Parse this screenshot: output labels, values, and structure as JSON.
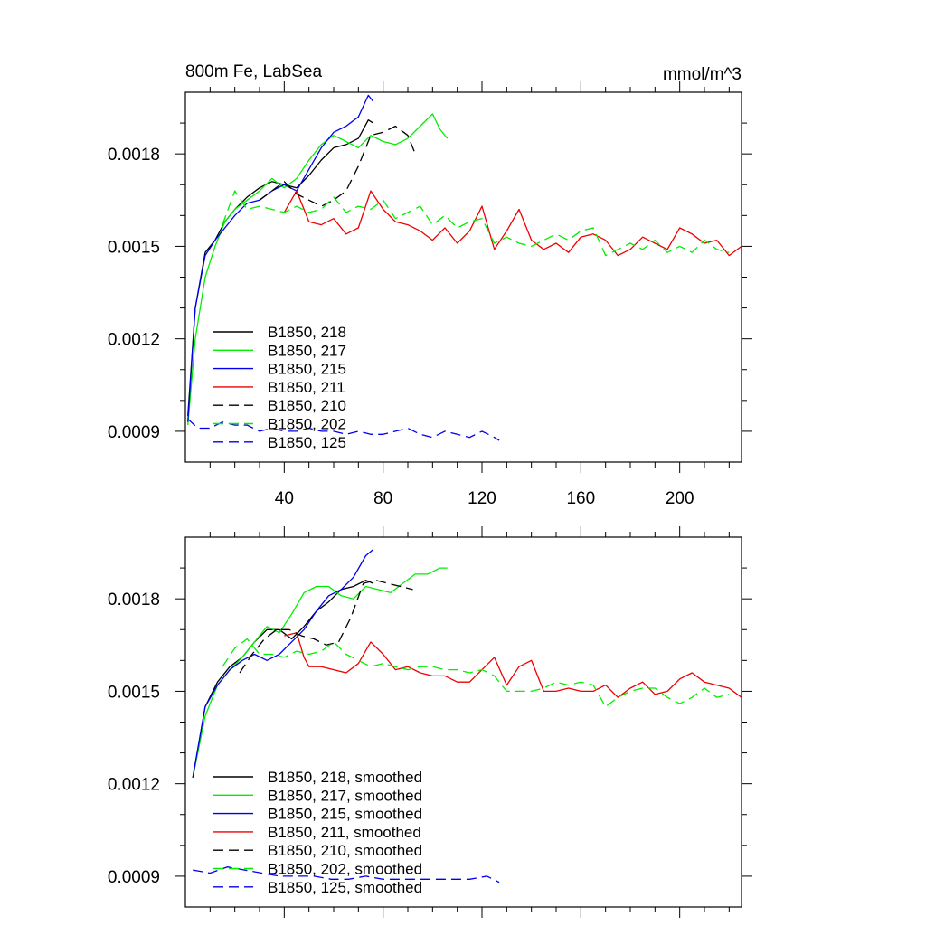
{
  "chart_data": [
    {
      "type": "line",
      "title_left": "800m Fe, LabSea",
      "title_right": "mmol/m^3",
      "xlim": [
        0,
        225
      ],
      "ylim": [
        0.0008,
        0.002
      ],
      "x_ticks": [
        40,
        80,
        120,
        160,
        200
      ],
      "y_ticks": [
        0.0009,
        0.0012,
        0.0015,
        0.0018
      ],
      "y_tick_labels": [
        "0.0009",
        "0.0012",
        "0.0015",
        "0.0018"
      ],
      "grid": false,
      "legend_position": "bottom-left",
      "series": [
        {
          "name": "B1850, 218",
          "color": "#000000",
          "dash": "solid",
          "x": [
            1,
            4,
            8,
            12,
            16,
            20,
            25,
            30,
            35,
            40,
            45,
            50,
            55,
            60,
            65,
            70,
            74,
            76
          ],
          "y": [
            0.00095,
            0.0013,
            0.00148,
            0.00152,
            0.00158,
            0.00162,
            0.00166,
            0.00169,
            0.00171,
            0.0017,
            0.00169,
            0.00173,
            0.00178,
            0.00182,
            0.00183,
            0.00185,
            0.00191,
            0.0019
          ]
        },
        {
          "name": "B1850, 217",
          "color": "#00ee00",
          "dash": "solid",
          "x": [
            1,
            4,
            8,
            12,
            16,
            20,
            25,
            30,
            35,
            40,
            45,
            50,
            55,
            60,
            65,
            70,
            75,
            80,
            85,
            90,
            95,
            100,
            103,
            106
          ],
          "y": [
            0.00092,
            0.0012,
            0.0014,
            0.0015,
            0.00158,
            0.00162,
            0.00165,
            0.00168,
            0.00172,
            0.00169,
            0.00172,
            0.00178,
            0.00183,
            0.00186,
            0.00184,
            0.00182,
            0.00186,
            0.00184,
            0.00183,
            0.00185,
            0.00189,
            0.00193,
            0.00188,
            0.00185
          ]
        },
        {
          "name": "B1850, 215",
          "color": "#0000ee",
          "dash": "solid",
          "x": [
            1,
            4,
            8,
            12,
            16,
            20,
            25,
            30,
            35,
            40,
            45,
            50,
            55,
            60,
            65,
            70,
            74,
            76
          ],
          "y": [
            0.00093,
            0.0013,
            0.00147,
            0.00152,
            0.00156,
            0.0016,
            0.00164,
            0.00165,
            0.00168,
            0.0017,
            0.00168,
            0.00175,
            0.00182,
            0.00187,
            0.00189,
            0.00192,
            0.00199,
            0.00197
          ]
        },
        {
          "name": "B1850, 211",
          "color": "#ee0000",
          "dash": "solid",
          "x": [
            40,
            45,
            50,
            55,
            60,
            65,
            70,
            75,
            80,
            85,
            90,
            95,
            100,
            105,
            110,
            115,
            120,
            125,
            130,
            135,
            140,
            145,
            150,
            155,
            160,
            165,
            170,
            175,
            180,
            185,
            190,
            195,
            200,
            205,
            210,
            215,
            220,
            225
          ],
          "y": [
            0.00161,
            0.00168,
            0.00158,
            0.00157,
            0.00159,
            0.00154,
            0.00156,
            0.00168,
            0.00162,
            0.00158,
            0.00157,
            0.00155,
            0.00152,
            0.00156,
            0.00151,
            0.00155,
            0.00163,
            0.00149,
            0.00155,
            0.00162,
            0.00152,
            0.00149,
            0.00151,
            0.00148,
            0.00153,
            0.00154,
            0.00152,
            0.00147,
            0.00149,
            0.00153,
            0.00151,
            0.00149,
            0.00156,
            0.00154,
            0.00151,
            0.00152,
            0.00147,
            0.0015
          ]
        },
        {
          "name": "B1850, 210",
          "color": "#000000",
          "dash": "dashed",
          "x": [
            30,
            35,
            40,
            45,
            50,
            55,
            60,
            65,
            70,
            75,
            80,
            85,
            90,
            93
          ],
          "y": [
            0.00165,
            0.00168,
            0.00171,
            0.00167,
            0.00165,
            0.00163,
            0.00165,
            0.00168,
            0.00176,
            0.00186,
            0.00187,
            0.00189,
            0.00186,
            0.0018
          ]
        },
        {
          "name": "B1850, 202",
          "color": "#00ee00",
          "dash": "dashed",
          "x": [
            15,
            20,
            25,
            30,
            35,
            40,
            45,
            50,
            55,
            60,
            65,
            70,
            75,
            80,
            85,
            90,
            95,
            100,
            105,
            110,
            115,
            120,
            125,
            130,
            135,
            140,
            145,
            150,
            155,
            160,
            165,
            170,
            175,
            180,
            185,
            190,
            195,
            200,
            205,
            210,
            215,
            220
          ],
          "y": [
            0.00157,
            0.00168,
            0.00162,
            0.00163,
            0.00162,
            0.00161,
            0.00163,
            0.00161,
            0.00162,
            0.00166,
            0.00161,
            0.00163,
            0.00162,
            0.00165,
            0.00159,
            0.00161,
            0.00163,
            0.00157,
            0.0016,
            0.00156,
            0.00158,
            0.00159,
            0.00151,
            0.00153,
            0.00151,
            0.0015,
            0.00152,
            0.00154,
            0.00152,
            0.00155,
            0.00156,
            0.00147,
            0.00149,
            0.00151,
            0.00149,
            0.00152,
            0.00148,
            0.0015,
            0.00148,
            0.00152,
            0.00149,
            0.00148
          ]
        },
        {
          "name": "B1850, 125",
          "color": "#0000ee",
          "dash": "dashed",
          "x": [
            1,
            5,
            10,
            15,
            20,
            25,
            30,
            35,
            40,
            45,
            50,
            55,
            60,
            65,
            70,
            75,
            80,
            85,
            90,
            95,
            100,
            105,
            110,
            115,
            120,
            125,
            127
          ],
          "y": [
            0.00094,
            0.00091,
            0.00091,
            0.00093,
            0.00092,
            0.00092,
            0.0009,
            0.00091,
            0.0009,
            0.0009,
            0.00091,
            0.0009,
            0.0009,
            0.00089,
            0.0009,
            0.00089,
            0.00089,
            0.0009,
            0.00091,
            0.00089,
            0.00088,
            0.0009,
            0.00089,
            0.00088,
            0.0009,
            0.00088,
            0.00087
          ]
        }
      ]
    },
    {
      "type": "line",
      "xlim": [
        0,
        225
      ],
      "ylim": [
        0.0008,
        0.002
      ],
      "y_ticks": [
        0.0009,
        0.0012,
        0.0015,
        0.0018
      ],
      "y_tick_labels": [
        "0.0009",
        "0.0012",
        "0.0015",
        "0.0018"
      ],
      "grid": false,
      "legend_position": "bottom-left",
      "series": [
        {
          "name": "B1850, 218, smoothed",
          "color": "#000000",
          "dash": "solid",
          "x": [
            3,
            8,
            13,
            18,
            23,
            28,
            33,
            38,
            43,
            48,
            53,
            58,
            63,
            68,
            73,
            76
          ],
          "y": [
            0.00122,
            0.00145,
            0.00153,
            0.00158,
            0.00161,
            0.00166,
            0.0017,
            0.0017,
            0.00167,
            0.00171,
            0.00176,
            0.00179,
            0.00183,
            0.00184,
            0.00186,
            0.00185
          ]
        },
        {
          "name": "B1850, 217, smoothed",
          "color": "#00ee00",
          "dash": "solid",
          "x": [
            3,
            8,
            13,
            18,
            23,
            28,
            33,
            38,
            43,
            48,
            53,
            58,
            63,
            68,
            73,
            78,
            83,
            88,
            93,
            98,
            103,
            106
          ],
          "y": [
            0.00122,
            0.00142,
            0.00152,
            0.00157,
            0.00161,
            0.00166,
            0.00171,
            0.00169,
            0.00175,
            0.00182,
            0.00184,
            0.00184,
            0.00181,
            0.0018,
            0.00184,
            0.00183,
            0.00182,
            0.00185,
            0.00188,
            0.00188,
            0.0019,
            0.0019
          ]
        },
        {
          "name": "B1850, 215, smoothed",
          "color": "#0000ee",
          "dash": "solid",
          "x": [
            3,
            8,
            13,
            18,
            23,
            28,
            33,
            38,
            43,
            48,
            53,
            58,
            63,
            68,
            73,
            76
          ],
          "y": [
            0.00122,
            0.00145,
            0.00152,
            0.00157,
            0.0016,
            0.00162,
            0.0016,
            0.00162,
            0.00166,
            0.0017,
            0.00176,
            0.00181,
            0.00183,
            0.00187,
            0.00194,
            0.00196
          ]
        },
        {
          "name": "B1850, 211, smoothed",
          "color": "#ee0000",
          "dash": "solid",
          "x": [
            40,
            45,
            48,
            50,
            55,
            60,
            65,
            70,
            75,
            80,
            85,
            90,
            95,
            100,
            105,
            110,
            115,
            120,
            125,
            130,
            135,
            140,
            145,
            150,
            155,
            160,
            165,
            170,
            175,
            180,
            185,
            190,
            195,
            200,
            205,
            210,
            215,
            220,
            225
          ],
          "y": [
            0.00168,
            0.00169,
            0.00161,
            0.00158,
            0.00158,
            0.00157,
            0.00156,
            0.00159,
            0.00166,
            0.00162,
            0.00157,
            0.00158,
            0.00156,
            0.00155,
            0.00155,
            0.00153,
            0.00153,
            0.00157,
            0.00161,
            0.00152,
            0.00158,
            0.0016,
            0.0015,
            0.0015,
            0.00151,
            0.0015,
            0.0015,
            0.00152,
            0.00148,
            0.00151,
            0.00153,
            0.00149,
            0.0015,
            0.00154,
            0.00156,
            0.00153,
            0.00152,
            0.00151,
            0.00148
          ]
        },
        {
          "name": "B1850, 210, smoothed",
          "color": "#000000",
          "dash": "dashed",
          "x": [
            22,
            27,
            32,
            37,
            42,
            47,
            52,
            57,
            62,
            67,
            72,
            77,
            82,
            87,
            92
          ],
          "y": [
            0.00156,
            0.00162,
            0.00167,
            0.0017,
            0.0017,
            0.00168,
            0.00167,
            0.00165,
            0.00166,
            0.00174,
            0.00185,
            0.00186,
            0.00185,
            0.00184,
            0.00183
          ]
        },
        {
          "name": "B1850, 202, smoothed",
          "color": "#00ee00",
          "dash": "dashed",
          "x": [
            15,
            20,
            25,
            30,
            35,
            40,
            45,
            50,
            55,
            60,
            65,
            70,
            75,
            80,
            85,
            90,
            95,
            100,
            105,
            110,
            115,
            120,
            125,
            130,
            135,
            140,
            145,
            150,
            155,
            160,
            165,
            170,
            175,
            180,
            185,
            190,
            195,
            200,
            205,
            210,
            215,
            220
          ],
          "y": [
            0.00158,
            0.00164,
            0.00167,
            0.00162,
            0.00162,
            0.00161,
            0.00163,
            0.00162,
            0.00163,
            0.00166,
            0.00162,
            0.0016,
            0.00158,
            0.00159,
            0.00158,
            0.00157,
            0.00158,
            0.00158,
            0.00157,
            0.00157,
            0.00156,
            0.00157,
            0.00155,
            0.0015,
            0.0015,
            0.0015,
            0.00151,
            0.00153,
            0.00152,
            0.00153,
            0.00152,
            0.00145,
            0.00148,
            0.0015,
            0.00151,
            0.00151,
            0.00148,
            0.00146,
            0.00148,
            0.00151,
            0.00148,
            0.00149
          ]
        },
        {
          "name": "B1850, 125, smoothed",
          "color": "#0000ee",
          "dash": "dashed",
          "x": [
            3,
            10,
            17,
            24,
            31,
            38,
            45,
            52,
            59,
            66,
            73,
            80,
            87,
            94,
            101,
            108,
            115,
            122,
            127
          ],
          "y": [
            0.00092,
            0.00091,
            0.00093,
            0.00092,
            0.00091,
            0.0009,
            0.0009,
            0.0009,
            0.00089,
            0.00089,
            0.0009,
            0.00089,
            0.00089,
            0.00089,
            0.00089,
            0.00089,
            0.00089,
            0.0009,
            0.00088
          ]
        }
      ]
    }
  ]
}
